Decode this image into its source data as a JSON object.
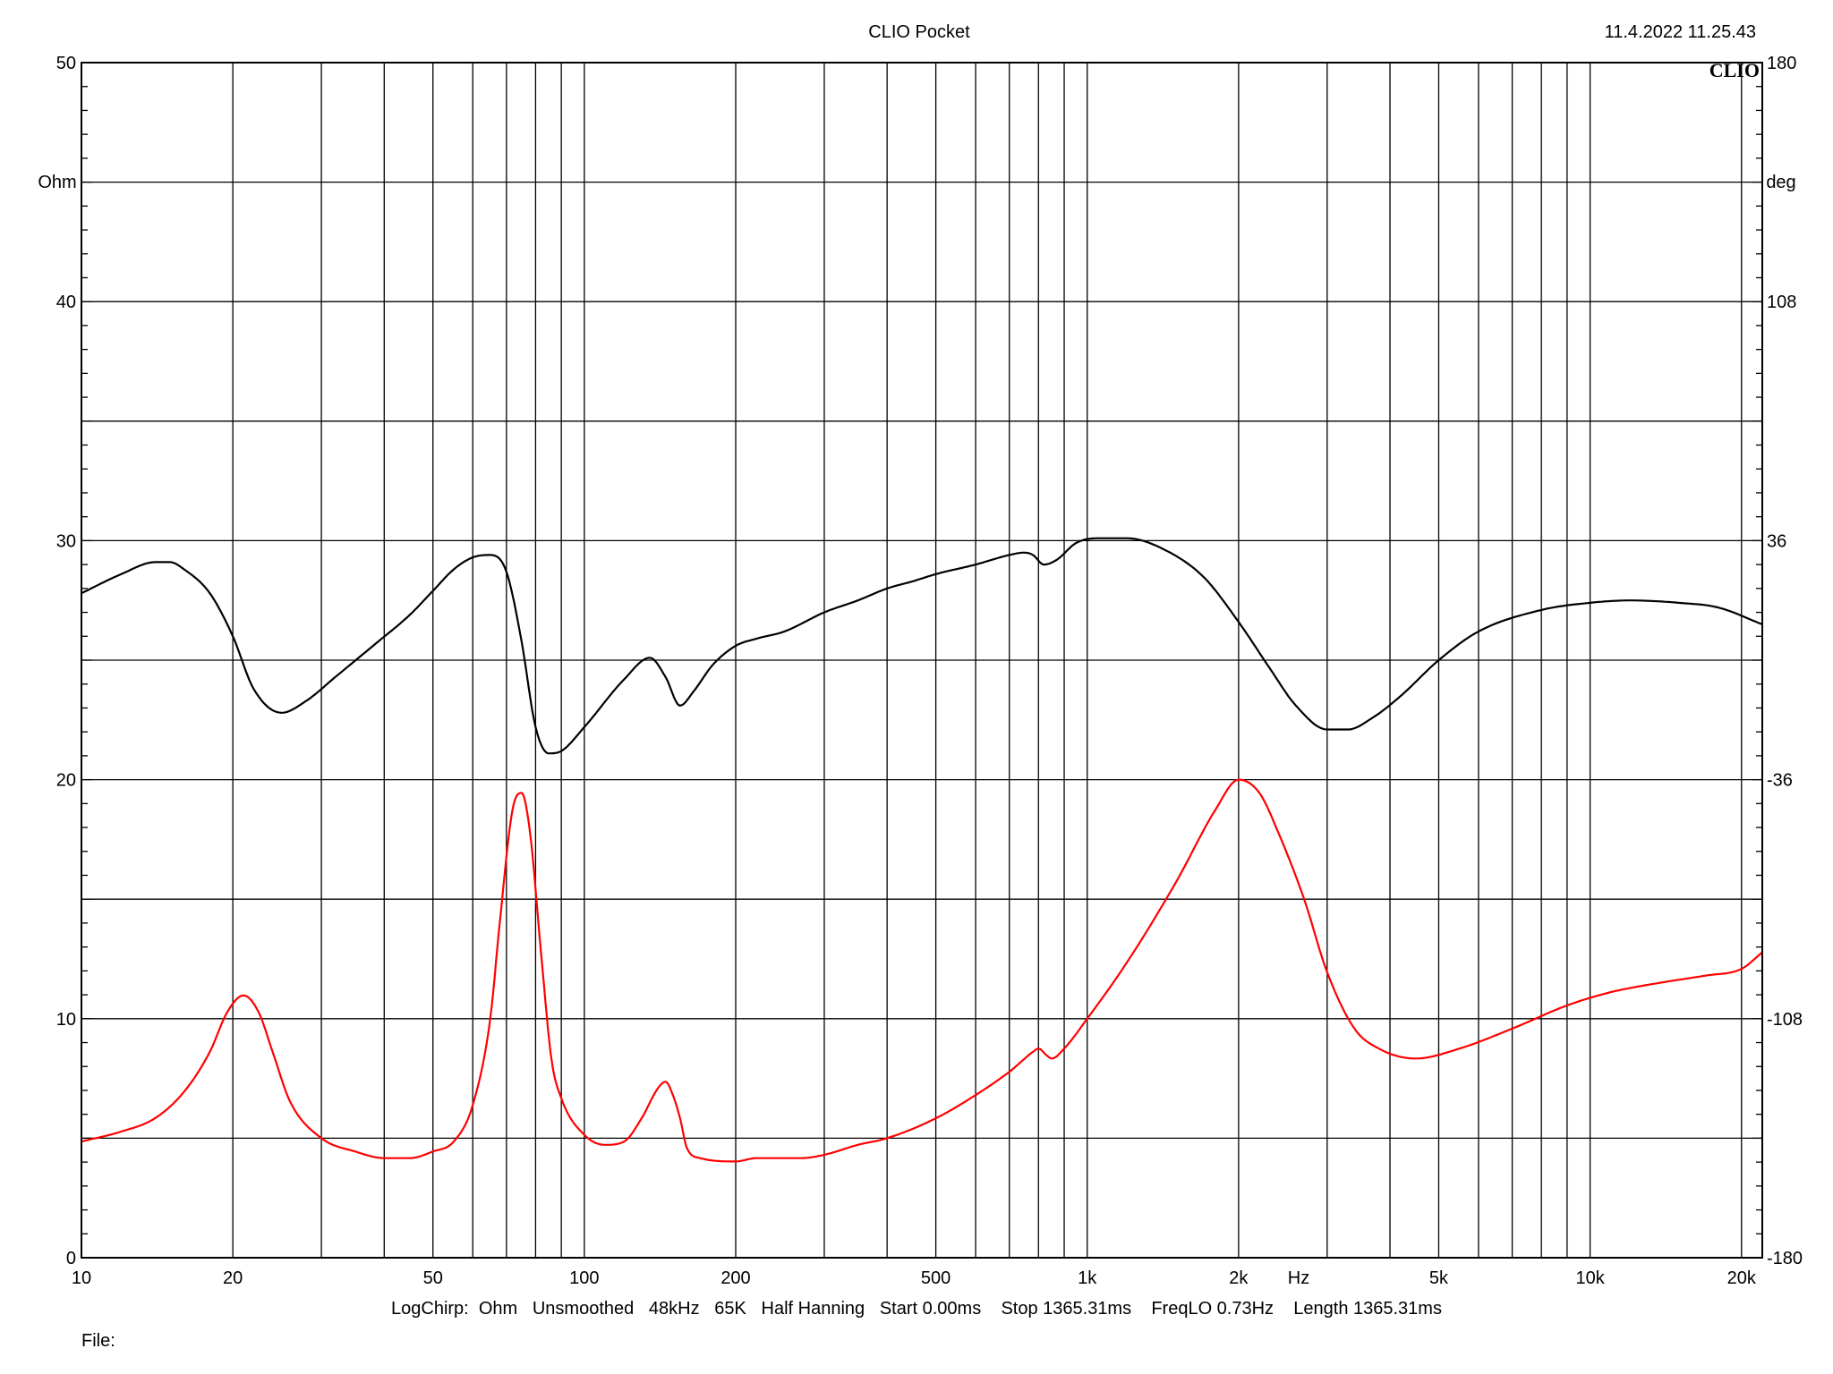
{
  "header": {
    "title": "CLIO Pocket",
    "timestamp": "11.4.2022 11.25.43",
    "logo": "CLIO"
  },
  "footer": {
    "settings": "LogChirp:  Ohm   Unsmoothed   48kHz   65K   Half Hanning   Start 0.00ms    Stop 1365.31ms    FreqLO 0.73Hz    Length 1365.31ms",
    "file_label": "File:"
  },
  "colors": {
    "impedance": "#000000",
    "phase": "#ff0000",
    "grid": "#000000",
    "background": "#ffffff"
  },
  "chart_data": {
    "type": "line",
    "x_scale": "log",
    "xlim": [
      10,
      22000
    ],
    "x_ticks": [
      10,
      20,
      50,
      100,
      200,
      500,
      1000,
      2000,
      5000,
      10000,
      20000
    ],
    "x_tick_labels": [
      "10",
      "20",
      "50",
      "100",
      "200",
      "500",
      "1k",
      "2k",
      "5k",
      "10k",
      "20k"
    ],
    "x_unit_label": "Hz",
    "ylim_left": [
      0,
      50
    ],
    "y_ticks_left": [
      0,
      10,
      20,
      30,
      40,
      50
    ],
    "ylabel_left": "Ohm",
    "ylim_right": [
      -180,
      180
    ],
    "y_ticks_right": [
      -180,
      -108,
      -36,
      36,
      108,
      180
    ],
    "ylabel_right": "deg",
    "grid": true,
    "series": [
      {
        "axis": "left",
        "color": "#000000",
        "x": [
          10,
          12,
          14,
          15,
          16,
          18,
          20,
          22,
          25,
          28,
          32,
          38,
          45,
          50,
          55,
          60,
          65,
          70,
          75,
          80,
          85,
          90,
          100,
          120,
          135,
          145,
          155,
          165,
          180,
          200,
          220,
          250,
          300,
          350,
          400,
          450,
          500,
          600,
          700,
          750,
          780,
          820,
          870,
          950,
          1050,
          1200,
          1400,
          1700,
          2000,
          2300,
          2600,
          3000,
          3300,
          3700,
          4200,
          5000,
          6000,
          8000,
          10000,
          12000,
          15000,
          18000,
          22000
        ],
        "y": [
          27.8,
          28.6,
          29.1,
          29.1,
          28.8,
          27.8,
          26.0,
          23.8,
          22.8,
          23.3,
          24.3,
          25.6,
          26.9,
          27.9,
          28.8,
          29.3,
          29.4,
          28.7,
          25.8,
          22.2,
          21.1,
          21.2,
          22.2,
          24.2,
          25.1,
          24.3,
          23.1,
          23.7,
          24.8,
          25.6,
          25.9,
          26.2,
          27.0,
          27.5,
          28.0,
          28.3,
          28.6,
          29.0,
          29.4,
          29.5,
          29.4,
          29.0,
          29.2,
          29.9,
          30.1,
          30.1,
          29.7,
          28.5,
          26.6,
          24.7,
          23.1,
          22.1,
          22.1,
          22.6,
          23.5,
          25.0,
          26.2,
          27.1,
          27.4,
          27.5,
          27.4,
          27.2,
          26.5
        ]
      },
      {
        "axis": "right",
        "color": "#ff0000",
        "x": [
          10,
          12,
          14,
          16,
          18,
          19.5,
          21,
          22.5,
          24,
          26,
          30,
          35,
          40,
          45,
          50,
          55,
          60,
          65,
          68,
          72,
          75,
          78,
          82,
          86,
          90,
          100,
          110,
          120,
          130,
          140,
          145,
          150,
          155,
          160,
          170,
          200,
          220,
          240,
          270,
          300,
          350,
          400,
          500,
          600,
          700,
          780,
          800,
          830,
          850,
          900,
          1000,
          1200,
          1500,
          1800,
          2000,
          2200,
          2400,
          2700,
          3000,
          3400,
          3800,
          4500,
          5500,
          7000,
          9000,
          11000,
          14000,
          17000,
          20000,
          22000
        ],
        "y": [
          -145,
          -142,
          -138,
          -130,
          -118,
          -106,
          -101,
          -106,
          -118,
          -133,
          -144,
          -148,
          -150,
          -150,
          -148,
          -145,
          -134,
          -108,
          -78,
          -45,
          -40,
          -52,
          -88,
          -120,
          -132,
          -143,
          -146,
          -145,
          -138,
          -129,
          -127,
          -131,
          -138,
          -147,
          -150,
          -151,
          -150,
          -150,
          -150,
          -149,
          -146,
          -144,
          -138,
          -131,
          -124,
          -118,
          -117,
          -119,
          -120,
          -117,
          -108,
          -91,
          -67,
          -45,
          -36,
          -40,
          -52,
          -72,
          -94,
          -111,
          -117,
          -120,
          -117,
          -111,
          -104,
          -100,
          -97,
          -95,
          -93,
          -88
        ]
      }
    ]
  }
}
